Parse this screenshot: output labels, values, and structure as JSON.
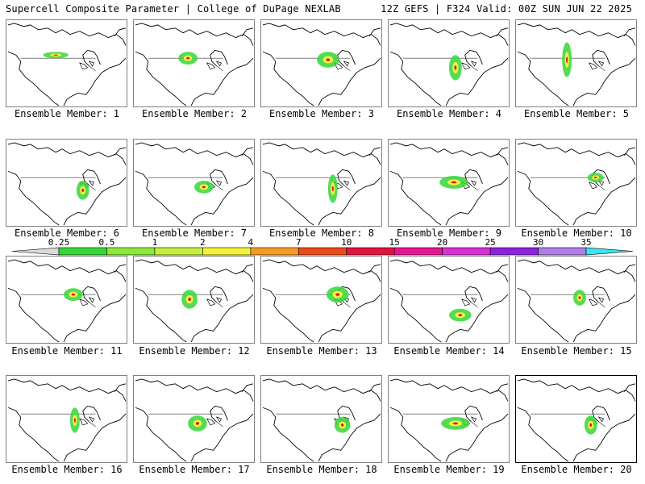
{
  "header": {
    "left": "Supercell Composite Parameter | College of DuPage NEXLAB",
    "right": "12Z GEFS | F324 Valid: 00Z SUN JUN 22 2025"
  },
  "caption_prefix": "Ensemble Member: ",
  "members": [
    1,
    2,
    3,
    4,
    5,
    6,
    7,
    8,
    9,
    10,
    11,
    12,
    13,
    14,
    15,
    16,
    17,
    18,
    19,
    20
  ],
  "highlighted_member": 20,
  "colorbar": {
    "labels": [
      "0.25",
      "0.5",
      "1",
      "2",
      "4",
      "7",
      "10",
      "15",
      "20",
      "25",
      "30",
      "35"
    ],
    "colors": [
      "#d9d9d9",
      "#37d637",
      "#8be83d",
      "#c6f03e",
      "#f4f23b",
      "#f59a22",
      "#f04a1a",
      "#e0143c",
      "#e81496",
      "#d830d8",
      "#8e20e0",
      "#b07ee8",
      "#38e8f0"
    ]
  }
}
